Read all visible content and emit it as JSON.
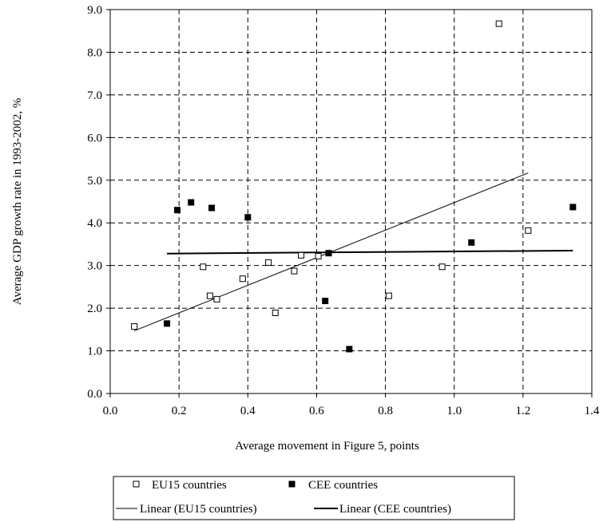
{
  "chart_data": {
    "type": "scatter",
    "xlabel": "Average movement in Figure 5, points",
    "ylabel": "Average GDP growth rate in 1993-2002, %",
    "xlim": [
      0.0,
      1.4
    ],
    "ylim": [
      0.0,
      9.0
    ],
    "x_ticks": [
      "0.0",
      "0.2",
      "0.4",
      "0.6",
      "0.8",
      "1.0",
      "1.2",
      "1.4"
    ],
    "y_ticks": [
      "0.0",
      "1.0",
      "2.0",
      "3.0",
      "4.0",
      "5.0",
      "6.0",
      "7.0",
      "8.0",
      "9.0"
    ],
    "grid": true,
    "legend_position": "bottom",
    "series": [
      {
        "name": "EU15 countries",
        "marker": "open-square",
        "points": [
          {
            "x": 0.07,
            "y": 1.57
          },
          {
            "x": 0.27,
            "y": 2.97
          },
          {
            "x": 0.29,
            "y": 2.29
          },
          {
            "x": 0.31,
            "y": 2.21
          },
          {
            "x": 0.385,
            "y": 2.69
          },
          {
            "x": 0.46,
            "y": 3.07
          },
          {
            "x": 0.48,
            "y": 1.89
          },
          {
            "x": 0.535,
            "y": 2.87
          },
          {
            "x": 0.555,
            "y": 3.24
          },
          {
            "x": 0.605,
            "y": 3.22
          },
          {
            "x": 0.81,
            "y": 2.29
          },
          {
            "x": 0.965,
            "y": 2.97
          },
          {
            "x": 1.13,
            "y": 8.67
          },
          {
            "x": 1.215,
            "y": 3.82
          }
        ]
      },
      {
        "name": "CEE countries",
        "marker": "filled-square",
        "points": [
          {
            "x": 0.165,
            "y": 1.64
          },
          {
            "x": 0.195,
            "y": 4.3
          },
          {
            "x": 0.235,
            "y": 4.48
          },
          {
            "x": 0.295,
            "y": 4.35
          },
          {
            "x": 0.4,
            "y": 4.13
          },
          {
            "x": 0.625,
            "y": 2.17
          },
          {
            "x": 0.635,
            "y": 3.29
          },
          {
            "x": 0.695,
            "y": 1.04
          },
          {
            "x": 1.05,
            "y": 3.54
          },
          {
            "x": 1.345,
            "y": 4.37
          }
        ]
      }
    ],
    "trendlines": [
      {
        "name": "Linear (EU15 countries)",
        "style": "thin",
        "from": {
          "x": 0.07,
          "y": 1.47
        },
        "to": {
          "x": 1.215,
          "y": 5.17
        }
      },
      {
        "name": "Linear (CEE countries)",
        "style": "thick",
        "from": {
          "x": 0.165,
          "y": 3.28
        },
        "to": {
          "x": 1.345,
          "y": 3.35
        }
      }
    ]
  }
}
